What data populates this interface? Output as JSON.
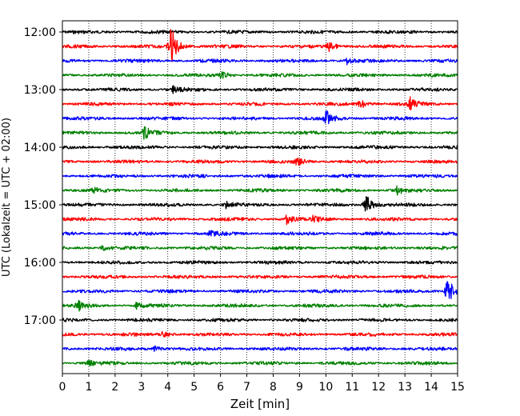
{
  "chart_data": {
    "type": "line",
    "title": "",
    "xlabel": "Zeit  [min]",
    "ylabel": "UTC (Lokalzeit = UTC + 02:00)",
    "xlim": [
      0,
      15
    ],
    "x_ticks": [
      0,
      1,
      2,
      3,
      4,
      5,
      6,
      7,
      8,
      9,
      10,
      11,
      12,
      13,
      14,
      15
    ],
    "y_time_range": [
      "11:45",
      "18:00"
    ],
    "y_ticks": [
      "12:00",
      "13:00",
      "14:00",
      "15:00",
      "16:00",
      "17:00"
    ],
    "trace_interval_min": 15,
    "trace_colors": [
      "#000000",
      "#ff0000",
      "#0000ff",
      "#008000"
    ],
    "vertical_grid": "dotted at every minute",
    "traces": [
      {
        "time": "12:00",
        "color": "#000000",
        "events": []
      },
      {
        "time": "12:15",
        "color": "#ff0000",
        "events": [
          {
            "t": 4.1,
            "amp": 28
          },
          {
            "t": 10.1,
            "amp": 7
          }
        ]
      },
      {
        "time": "12:30",
        "color": "#0000ff",
        "events": [
          {
            "t": 10.8,
            "amp": 4
          }
        ]
      },
      {
        "time": "12:45",
        "color": "#008000",
        "events": [
          {
            "t": 6.0,
            "amp": 6
          }
        ]
      },
      {
        "time": "13:00",
        "color": "#000000",
        "events": [
          {
            "t": 4.2,
            "amp": 4
          }
        ]
      },
      {
        "time": "13:15",
        "color": "#ff0000",
        "events": [
          {
            "t": 11.3,
            "amp": 8
          },
          {
            "t": 13.2,
            "amp": 7
          }
        ]
      },
      {
        "time": "13:30",
        "color": "#0000ff",
        "events": [
          {
            "t": 10.0,
            "amp": 10
          }
        ]
      },
      {
        "time": "13:45",
        "color": "#008000",
        "events": [
          {
            "t": 3.1,
            "amp": 8
          }
        ]
      },
      {
        "time": "14:00",
        "color": "#000000",
        "events": []
      },
      {
        "time": "14:15",
        "color": "#ff0000",
        "events": [
          {
            "t": 8.9,
            "amp": 5
          }
        ]
      },
      {
        "time": "14:30",
        "color": "#0000ff",
        "events": []
      },
      {
        "time": "14:45",
        "color": "#008000",
        "events": [
          {
            "t": 1.2,
            "amp": 4
          },
          {
            "t": 12.7,
            "amp": 5
          }
        ]
      },
      {
        "time": "15:00",
        "color": "#000000",
        "events": [
          {
            "t": 11.5,
            "amp": 14
          },
          {
            "t": 6.2,
            "amp": 4
          }
        ]
      },
      {
        "time": "15:15",
        "color": "#ff0000",
        "events": [
          {
            "t": 8.5,
            "amp": 6
          },
          {
            "t": 9.5,
            "amp": 5
          }
        ]
      },
      {
        "time": "15:30",
        "color": "#0000ff",
        "events": [
          {
            "t": 5.6,
            "amp": 3
          }
        ]
      },
      {
        "time": "15:45",
        "color": "#008000",
        "events": [
          {
            "t": 1.5,
            "amp": 3
          }
        ]
      },
      {
        "time": "16:00",
        "color": "#000000",
        "events": []
      },
      {
        "time": "16:15",
        "color": "#ff0000",
        "events": []
      },
      {
        "time": "16:30",
        "color": "#0000ff",
        "events": [
          {
            "t": 14.6,
            "amp": 20
          }
        ]
      },
      {
        "time": "16:45",
        "color": "#008000",
        "events": [
          {
            "t": 0.6,
            "amp": 6
          },
          {
            "t": 2.8,
            "amp": 4
          }
        ]
      },
      {
        "time": "17:00",
        "color": "#000000",
        "events": []
      },
      {
        "time": "17:15",
        "color": "#ff0000",
        "events": [
          {
            "t": 3.8,
            "amp": 4
          }
        ]
      },
      {
        "time": "17:30",
        "color": "#0000ff",
        "events": [
          {
            "t": 3.5,
            "amp": 3
          }
        ]
      },
      {
        "time": "17:45",
        "color": "#008000",
        "events": [
          {
            "t": 0.9,
            "amp": 6
          }
        ]
      }
    ]
  }
}
